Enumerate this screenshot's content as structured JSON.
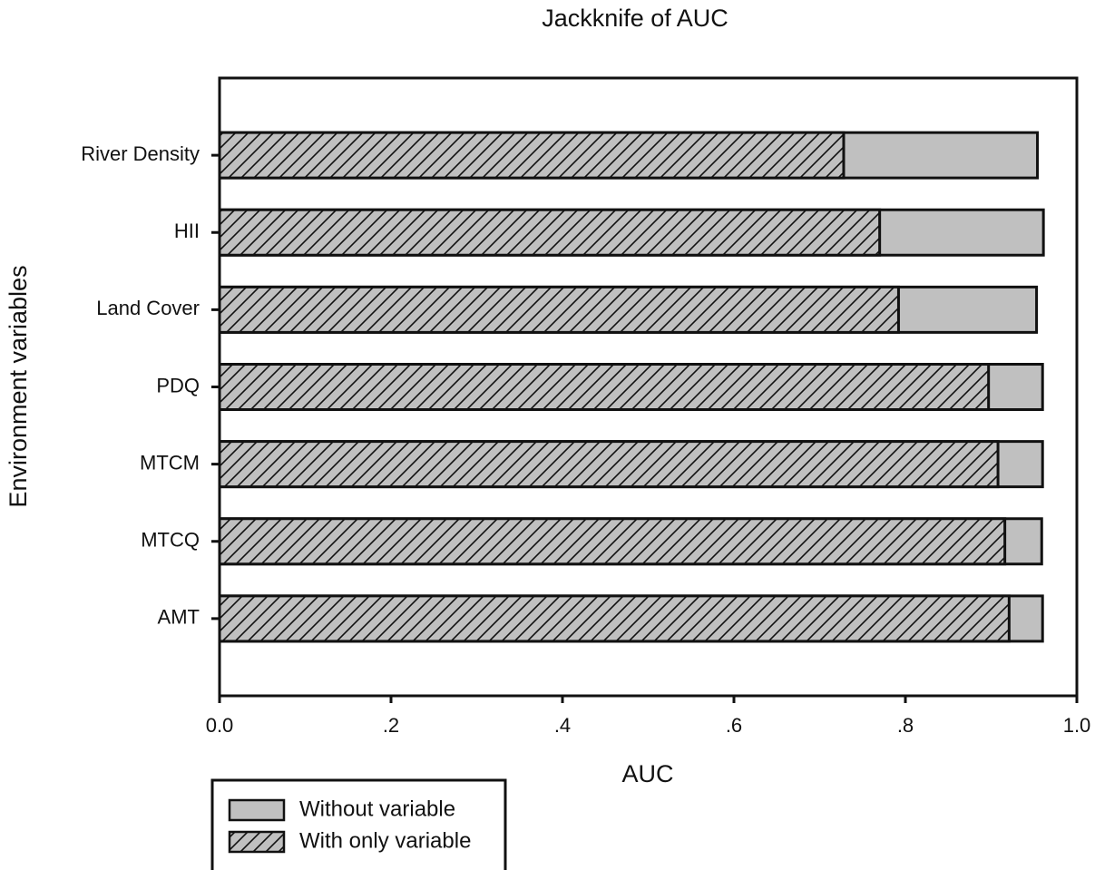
{
  "chart_data": {
    "type": "hbar-overlap",
    "title": "Jackknife of AUC",
    "xlabel": "AUC",
    "ylabel": "Environment variables",
    "categories": [
      "River Density",
      "HII",
      "Land Cover",
      "PDQ",
      "MTCM",
      "MTCQ",
      "AMT"
    ],
    "series": [
      {
        "name": "Without variable",
        "color": "#c0c0c0",
        "hatch": false,
        "values": [
          0.954,
          0.961,
          0.953,
          0.96,
          0.96,
          0.959,
          0.96
        ]
      },
      {
        "name": "With only variable",
        "color": "#c0c0c0",
        "hatch": true,
        "values": [
          0.728,
          0.77,
          0.792,
          0.897,
          0.908,
          0.916,
          0.921
        ]
      }
    ],
    "xlim": [
      0,
      1
    ],
    "xticks": [
      {
        "value": 0,
        "label": "0.0"
      },
      {
        "value": 0.2,
        "label": ".2"
      },
      {
        "value": 0.4,
        "label": ".4"
      },
      {
        "value": 0.6,
        "label": ".6"
      },
      {
        "value": 0.8,
        "label": ".8"
      },
      {
        "value": 1,
        "label": "1.0"
      }
    ],
    "legend": "bottom-left"
  }
}
